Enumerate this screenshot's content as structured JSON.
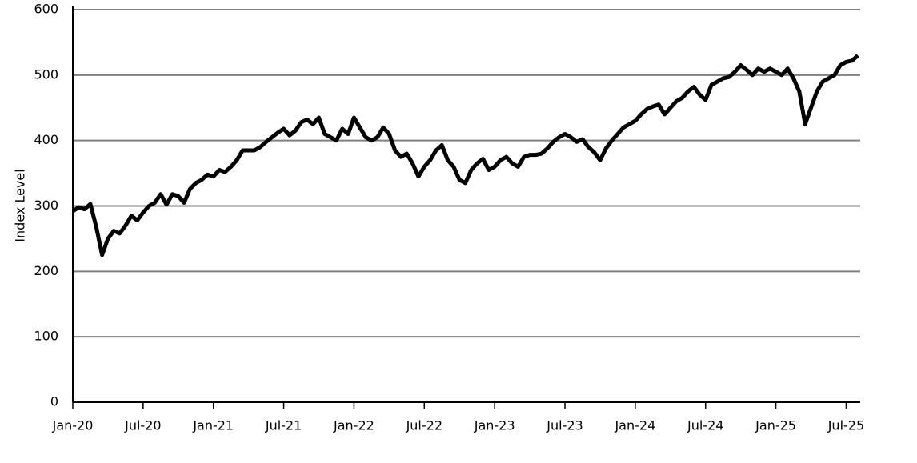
{
  "chart_data": {
    "type": "line",
    "ylabel": "Index Level",
    "x": [
      0,
      0.5,
      1,
      1.5,
      2,
      2.5,
      3,
      3.5,
      4,
      4.5,
      5,
      5.5,
      6,
      6.5,
      7,
      7.5,
      8,
      8.5,
      9,
      9.5,
      10,
      10.5,
      11,
      11.5,
      12,
      12.5,
      13,
      13.5,
      14,
      14.5,
      15,
      15.5,
      16,
      16.5,
      17,
      17.5,
      18,
      18.5,
      19,
      19.5,
      20,
      20.5,
      21,
      21.5,
      22,
      22.5,
      23,
      23.5,
      24,
      24.5,
      25,
      25.5,
      26,
      26.5,
      27,
      27.5,
      28,
      28.5,
      29,
      29.5,
      30,
      30.5,
      31,
      31.5,
      32,
      32.5,
      33,
      33.5,
      34,
      34.5,
      35,
      35.5,
      36,
      36.5,
      37,
      37.5,
      38,
      38.5,
      39,
      39.5,
      40,
      40.5,
      41,
      41.5,
      42,
      42.5,
      43,
      43.5,
      44,
      44.5,
      45,
      45.5,
      46,
      46.5,
      47,
      47.5,
      48,
      48.5,
      49,
      49.5,
      50,
      50.5,
      51,
      51.5,
      52,
      52.5,
      53,
      53.5,
      54,
      54.5,
      55,
      55.5,
      56,
      56.5,
      57,
      57.5,
      58,
      58.5,
      59,
      59.5,
      60,
      60.5,
      61,
      61.5,
      62,
      62.5,
      63,
      63.5,
      64,
      64.5,
      65,
      65.5,
      66,
      66.5,
      67
    ],
    "series": [
      {
        "name": "Index Level",
        "color": "#000000",
        "values": [
          292,
          298,
          295,
          303,
          268,
          225,
          250,
          262,
          258,
          270,
          285,
          278,
          290,
          300,
          305,
          318,
          302,
          318,
          315,
          305,
          326,
          335,
          340,
          348,
          345,
          355,
          352,
          360,
          370,
          385,
          385,
          385,
          390,
          398,
          405,
          412,
          418,
          408,
          415,
          428,
          432,
          425,
          435,
          410,
          405,
          400,
          418,
          410,
          435,
          420,
          405,
          400,
          405,
          420,
          410,
          385,
          375,
          380,
          365,
          345,
          360,
          370,
          385,
          393,
          370,
          360,
          340,
          335,
          355,
          365,
          372,
          355,
          360,
          370,
          375,
          365,
          360,
          375,
          378,
          378,
          380,
          388,
          398,
          405,
          410,
          405,
          398,
          402,
          390,
          382,
          370,
          388,
          400,
          410,
          420,
          425,
          430,
          440,
          448,
          452,
          455,
          440,
          450,
          460,
          465,
          475,
          482,
          470,
          462,
          485,
          490,
          495,
          497,
          505,
          515,
          508,
          500,
          510,
          505,
          510,
          505,
          500,
          510,
          495,
          475,
          425,
          450,
          475,
          490,
          495,
          500,
          515,
          520,
          522,
          530
        ]
      }
    ],
    "xlim": [
      0,
      67.2
    ],
    "xticks": [
      {
        "value": 0,
        "label": "Jan-20"
      },
      {
        "value": 6,
        "label": "Jul-20"
      },
      {
        "value": 12,
        "label": "Jan-21"
      },
      {
        "value": 18,
        "label": "Jul-21"
      },
      {
        "value": 24,
        "label": "Jan-22"
      },
      {
        "value": 30,
        "label": "Jul-22"
      },
      {
        "value": 36,
        "label": "Jan-23"
      },
      {
        "value": 42,
        "label": "Jul-23"
      },
      {
        "value": 48,
        "label": "Jan-24"
      },
      {
        "value": 54,
        "label": "Jul-24"
      },
      {
        "value": 60,
        "label": "Jan-25"
      },
      {
        "value": 66,
        "label": "Jul-25"
      }
    ],
    "ylim": [
      0,
      600
    ],
    "yticks": [
      0,
      100,
      200,
      300,
      400,
      500,
      600
    ],
    "grid": true
  }
}
